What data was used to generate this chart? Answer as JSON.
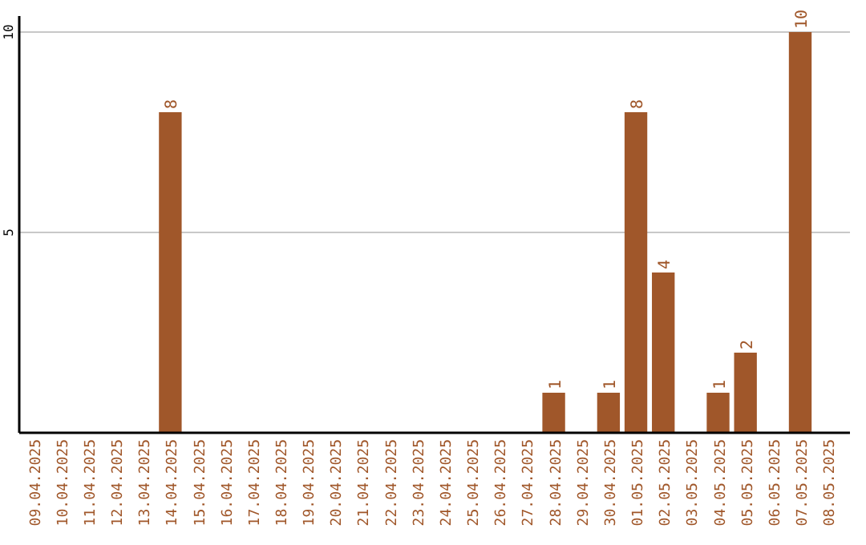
{
  "chart_data": {
    "type": "bar",
    "categories": [
      "09.04.2025",
      "10.04.2025",
      "11.04.2025",
      "12.04.2025",
      "13.04.2025",
      "14.04.2025",
      "15.04.2025",
      "16.04.2025",
      "17.04.2025",
      "18.04.2025",
      "19.04.2025",
      "20.04.2025",
      "21.04.2025",
      "22.04.2025",
      "23.04.2025",
      "24.04.2025",
      "25.04.2025",
      "26.04.2025",
      "27.04.2025",
      "28.04.2025",
      "29.04.2025",
      "30.04.2025",
      "01.05.2025",
      "02.05.2025",
      "03.05.2025",
      "04.05.2025",
      "05.05.2025",
      "06.05.2025",
      "07.05.2025",
      "08.05.2025"
    ],
    "values": [
      0,
      0,
      0,
      0,
      0,
      8,
      0,
      0,
      0,
      0,
      0,
      0,
      0,
      0,
      0,
      0,
      0,
      0,
      0,
      1,
      0,
      1,
      8,
      4,
      0,
      1,
      2,
      0,
      10,
      0
    ],
    "value_labels": [
      null,
      null,
      null,
      null,
      null,
      "8",
      null,
      null,
      null,
      null,
      null,
      null,
      null,
      null,
      null,
      null,
      null,
      null,
      null,
      "1",
      null,
      "1",
      "8",
      "4",
      null,
      "1",
      "2",
      null,
      "10",
      null
    ],
    "color": "#a0572a",
    "ylim": [
      0,
      10.4
    ],
    "yticks": [
      5,
      10
    ],
    "grid": "y"
  }
}
